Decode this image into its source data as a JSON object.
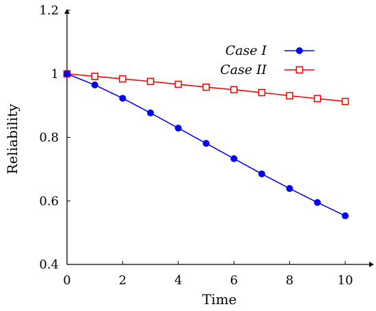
{
  "chart_data": {
    "type": "line",
    "title": "",
    "xlabel": "Time",
    "ylabel": "Reliability",
    "xlim": [
      0,
      10.5
    ],
    "ylim": [
      0.4,
      1.2
    ],
    "xticks": [
      0,
      2,
      4,
      6,
      8,
      10
    ],
    "yticks": [
      0.4,
      0.6,
      0.8,
      1,
      1.2
    ],
    "xtick_labels": [
      "0",
      "2",
      "4",
      "6",
      "8",
      "10"
    ],
    "ytick_labels": [
      "0.4",
      "0.6",
      "0.8",
      "1",
      "1.2"
    ],
    "grid": false,
    "legend_position": "top-right",
    "x": [
      0,
      1,
      2,
      3,
      4,
      5,
      6,
      7,
      8,
      9,
      10
    ],
    "series": [
      {
        "name": "Case I",
        "color": "#0000ff",
        "marker": "filled-circle",
        "values": [
          1.0,
          0.965,
          0.923,
          0.877,
          0.829,
          0.781,
          0.733,
          0.685,
          0.639,
          0.595,
          0.553
        ]
      },
      {
        "name": "Case II",
        "color": "#ff0000",
        "marker": "open-square",
        "values": [
          1.0,
          0.992,
          0.984,
          0.976,
          0.967,
          0.958,
          0.95,
          0.941,
          0.931,
          0.922,
          0.913
        ]
      }
    ]
  }
}
